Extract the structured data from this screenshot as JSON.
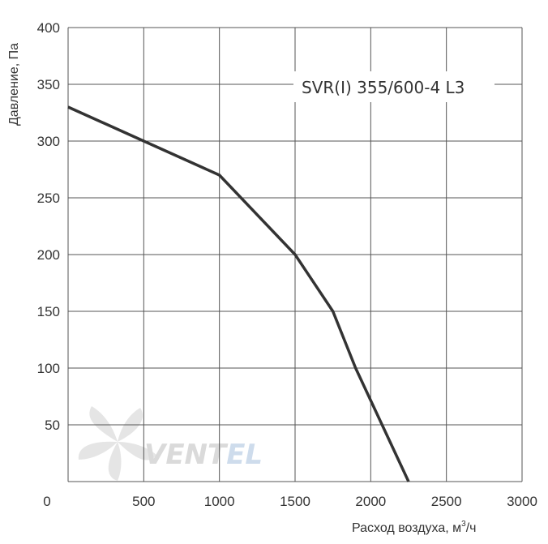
{
  "chart_data": {
    "type": "line",
    "model_label": "SVR(I) 355/600-4 L3",
    "xlabel_main": "Расход воздуха, м",
    "xlabel_sup": "3",
    "xlabel_tail": "/ч",
    "ylabel": "Давление, Па",
    "xlim": [
      0,
      3000
    ],
    "ylim": [
      0,
      400
    ],
    "x_ticks": [
      0,
      500,
      1000,
      1500,
      2000,
      2500,
      3000
    ],
    "y_ticks": [
      50,
      100,
      150,
      200,
      250,
      300,
      350,
      400
    ],
    "grid": true,
    "series": [
      {
        "x": [
          0,
          500,
          1000,
          1500,
          1750,
          1900,
          2250
        ],
        "y": [
          330,
          300,
          270,
          200,
          150,
          100,
          0
        ]
      }
    ]
  },
  "watermark": {
    "text_main": "VENT",
    "text_accent": "EL",
    "icon": "fan-blade-icon",
    "colors": {
      "main": "#d6d6d6",
      "accent": "#c9d9ea"
    }
  },
  "colors": {
    "line": "#333333",
    "grid": "#555555"
  }
}
